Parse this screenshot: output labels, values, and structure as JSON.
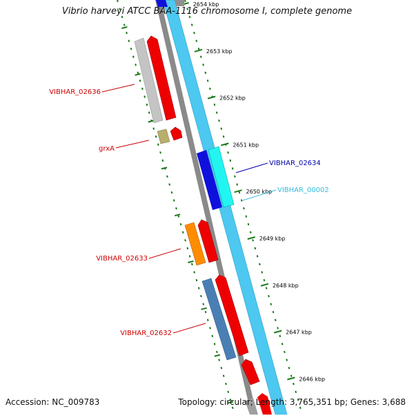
{
  "title": "Vibrio harveyi ATCC BAA-1116 chromosome I, complete genome",
  "footer": {
    "accession": "Accession: NC_009783",
    "topology": "Topology: circular; Length: 3,765,351 bp; Genes: 3,688"
  },
  "kbp_markers": [
    "2654 kbp",
    "2653 kbp",
    "2652 kbp",
    "2651 kbp",
    "2650 kbp",
    "2649 kbp",
    "2648 kbp",
    "2647 kbp",
    "2646 kbp"
  ],
  "gene_labels": [
    {
      "text": "VIBHAR_02636",
      "color": "#cc0000"
    },
    {
      "text": "grxA",
      "color": "#cc0000"
    },
    {
      "text": "VIBHAR_02634",
      "color": "#0000aa"
    },
    {
      "text": "VIBHAR_00002",
      "color": "#33bbdd"
    },
    {
      "text": "VIBHAR_02633",
      "color": "#cc0000"
    },
    {
      "text": "VIBHAR_02632",
      "color": "#cc0000"
    }
  ],
  "colors": {
    "backbone": "#8a8a8a",
    "sequence": "#4dc8f0",
    "cds": "#ee0000",
    "tick": "#1a7a1a",
    "blue_gene": "#1010dd",
    "cyan_gene": "#22f5f0",
    "gray_gene": "#c4c4c4",
    "olive_gene": "#b8ae6e",
    "orange_gene": "#ff8c00",
    "steel_gene": "#4a7fb5"
  }
}
